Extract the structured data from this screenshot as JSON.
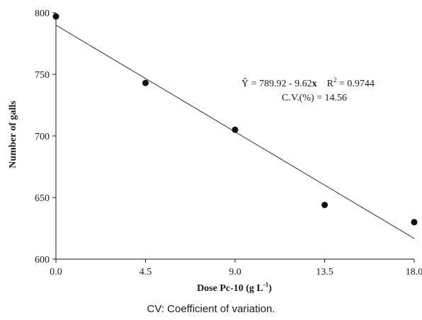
{
  "chart_data": {
    "type": "scatter",
    "xlabel": "Dose Pc-10 (g L",
    "xlabel_sup": "-1",
    "xlabel_suffix": ")",
    "ylabel": "Number of galls",
    "xlim": [
      0,
      18
    ],
    "ylim": [
      600,
      800
    ],
    "xticks": [
      "0.0",
      "4.5",
      "9.0",
      "13.5",
      "18.0"
    ],
    "xtick_values": [
      0,
      4.5,
      9,
      13.5,
      18
    ],
    "yticks": [
      "600",
      "650",
      "700",
      "750",
      "800"
    ],
    "ytick_values": [
      600,
      650,
      700,
      750,
      800
    ],
    "points": [
      {
        "x": 0,
        "y": 797
      },
      {
        "x": 4.5,
        "y": 743
      },
      {
        "x": 9,
        "y": 705
      },
      {
        "x": 13.5,
        "y": 644
      },
      {
        "x": 18,
        "y": 630
      }
    ],
    "regression": {
      "intercept": 789.92,
      "slope": -9.62
    },
    "equation": {
      "yhat": "Ŷ = 789.92 - 9.62",
      "var": "x",
      "r2_label": "R",
      "r2_sup": "2",
      "r2_value": " = 0.9744",
      "cv": "C.V.(%) = 14.56"
    },
    "grid": false
  },
  "caption": "CV: Coefficient of variation."
}
